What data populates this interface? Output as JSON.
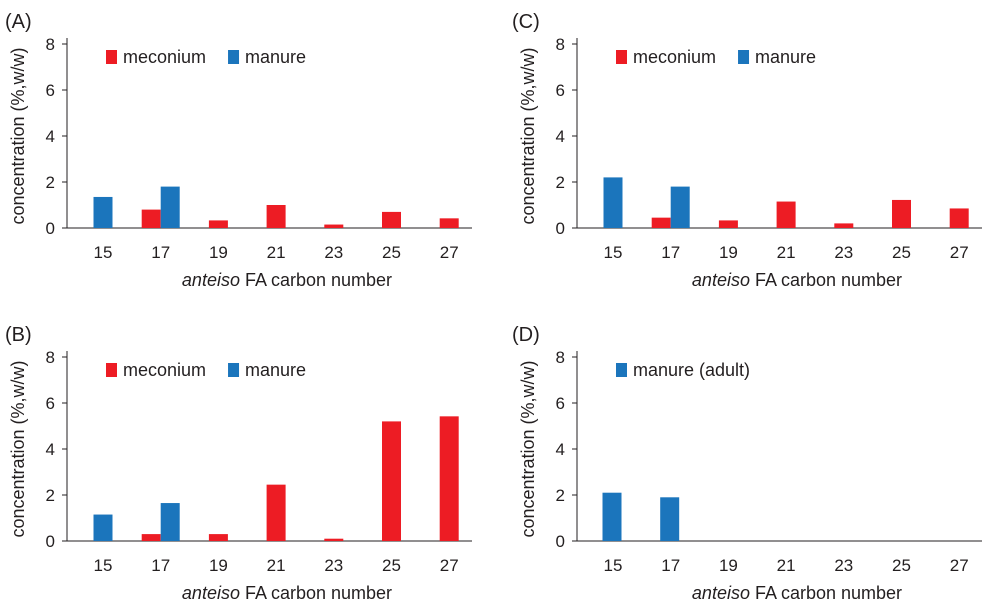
{
  "chart_data": [
    {
      "type": "bar",
      "panel": "(A)",
      "categories": [
        "15",
        "17",
        "19",
        "21",
        "23",
        "25",
        "27"
      ],
      "xlabel_italic": "anteiso",
      "xlabel_rest": " FA carbon number",
      "ylabel": "concentration (%,w/w)",
      "ylim": [
        0,
        8
      ],
      "yticks": [
        0,
        2,
        4,
        6,
        8
      ],
      "grid": false,
      "legend_position": "top-left",
      "series": [
        {
          "name": "meconium",
          "color": "#ed1c24",
          "values": [
            null,
            0.8,
            0.33,
            1.0,
            0.15,
            0.7,
            0.42
          ]
        },
        {
          "name": "manure",
          "color": "#1b75bc",
          "values": [
            1.35,
            1.8,
            null,
            null,
            null,
            null,
            null
          ]
        }
      ]
    },
    {
      "type": "bar",
      "panel": "(C)",
      "categories": [
        "15",
        "17",
        "19",
        "21",
        "23",
        "25",
        "27"
      ],
      "xlabel_italic": "anteiso",
      "xlabel_rest": " FA carbon number",
      "ylabel": "concentration (%,w/w)",
      "ylim": [
        0,
        8
      ],
      "yticks": [
        0,
        2,
        4,
        6,
        8
      ],
      "grid": false,
      "legend_position": "top-left",
      "series": [
        {
          "name": "meconium",
          "color": "#ed1c24",
          "values": [
            null,
            0.45,
            0.33,
            1.15,
            0.2,
            1.22,
            0.85
          ]
        },
        {
          "name": "manure",
          "color": "#1b75bc",
          "values": [
            2.2,
            1.8,
            null,
            null,
            null,
            null,
            null
          ]
        }
      ]
    },
    {
      "type": "bar",
      "panel": "(B)",
      "categories": [
        "15",
        "17",
        "19",
        "21",
        "23",
        "25",
        "27"
      ],
      "xlabel_italic": "anteiso",
      "xlabel_rest": " FA carbon number",
      "ylabel": "concentration (%,w/w)",
      "ylim": [
        0,
        8
      ],
      "yticks": [
        0,
        2,
        4,
        6,
        8
      ],
      "grid": false,
      "legend_position": "top-left",
      "series": [
        {
          "name": "meconium",
          "color": "#ed1c24",
          "values": [
            null,
            0.3,
            0.3,
            2.45,
            0.1,
            5.2,
            5.42
          ]
        },
        {
          "name": "manure",
          "color": "#1b75bc",
          "values": [
            1.15,
            1.65,
            null,
            null,
            null,
            null,
            null
          ]
        }
      ]
    },
    {
      "type": "bar",
      "panel": "(D)",
      "categories": [
        "15",
        "17",
        "19",
        "21",
        "23",
        "25",
        "27"
      ],
      "xlabel_italic": "anteiso",
      "xlabel_rest": " FA carbon number",
      "ylabel": "concentration (%,w/w)",
      "ylim": [
        0,
        8
      ],
      "yticks": [
        0,
        2,
        4,
        6,
        8
      ],
      "grid": false,
      "legend_position": "top-left",
      "series": [
        {
          "name": "manure (adult)",
          "color": "#1b75bc",
          "values": [
            2.1,
            1.9,
            null,
            null,
            null,
            null,
            null
          ]
        }
      ]
    }
  ]
}
